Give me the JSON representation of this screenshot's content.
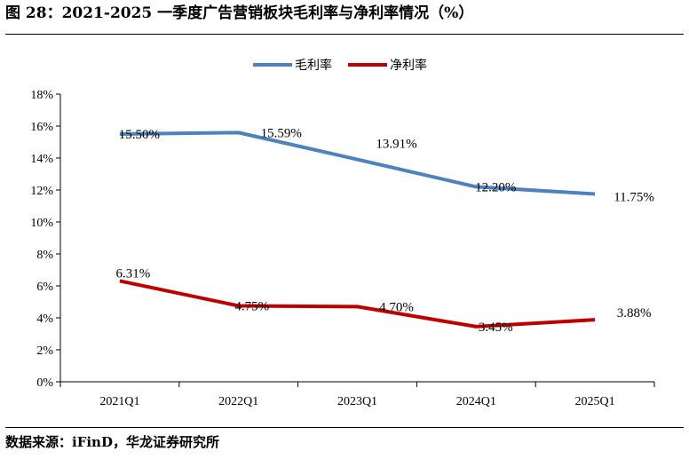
{
  "figure": {
    "title": "图 28：2021-2025 一季度广告营销板块毛利率与净利率情况（%）",
    "source": "数据来源：iFinD，华龙证券研究所"
  },
  "chart_data": {
    "type": "line",
    "categories": [
      "2021Q1",
      "2022Q1",
      "2023Q1",
      "2024Q1",
      "2025Q1"
    ],
    "series": [
      {
        "name": "毛利率",
        "color": "#4F81BD",
        "values": [
          15.5,
          15.59,
          13.91,
          12.2,
          11.75
        ],
        "labels": [
          "15.50%",
          "15.59%",
          "13.91%",
          "12.20%",
          "11.75%"
        ]
      },
      {
        "name": "净利率",
        "color": "#C00000",
        "values": [
          6.31,
          4.75,
          4.7,
          3.45,
          3.88
        ],
        "labels": [
          "6.31%",
          "4.75%",
          "4.70%",
          "3.45%",
          "3.88%"
        ]
      }
    ],
    "ylim": [
      0,
      18
    ],
    "yticks": [
      "0%",
      "2%",
      "4%",
      "6%",
      "8%",
      "10%",
      "12%",
      "14%",
      "16%",
      "18%"
    ],
    "legend": "top-center",
    "grid": false
  }
}
